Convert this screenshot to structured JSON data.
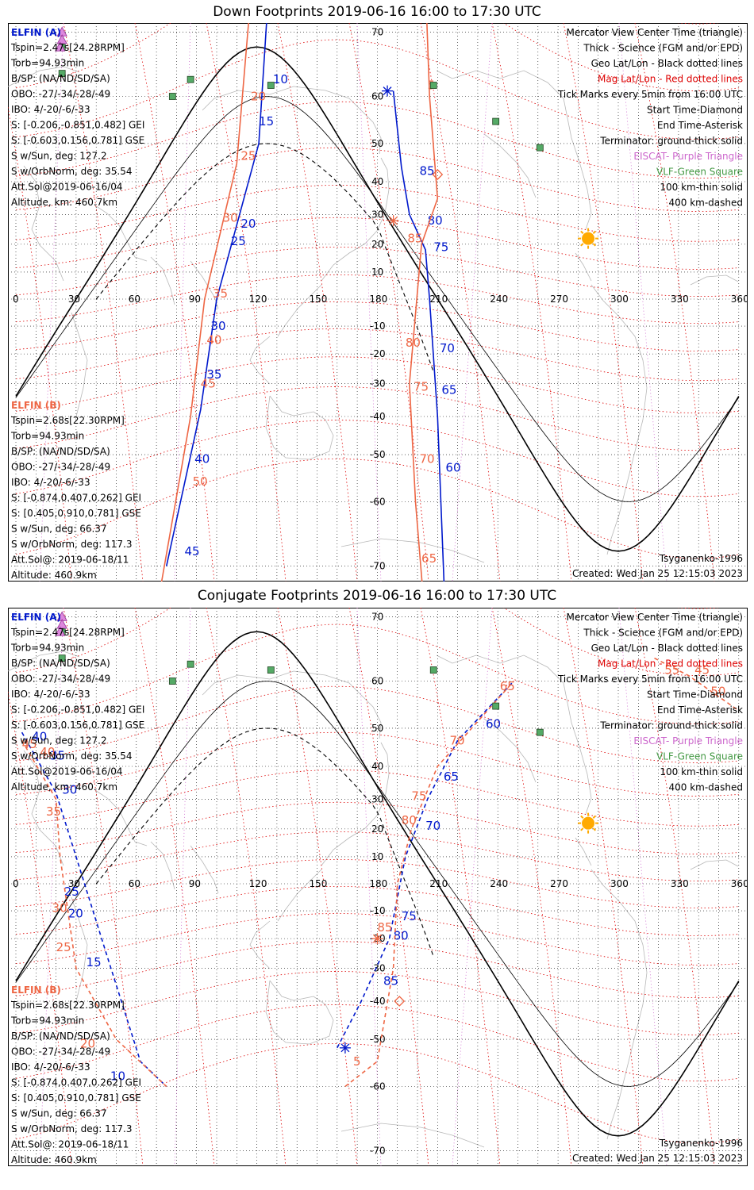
{
  "colors": {
    "elfin_a": "#0018cc",
    "elfin_b": "#ee6644",
    "mag_grid": "#dd0000",
    "geo_grid": "#000000",
    "eiscat": "#cc66cc",
    "vlf": "#449944",
    "vlf_fill": "#55aa66",
    "sun": "#ffaa00",
    "coast": "#b8b8b8"
  },
  "panels": [
    {
      "id": "down",
      "title": "Down Footprints 2019-06-16 16:00 to 17:30 UTC",
      "elfin_a": {
        "label": "ELFIN (A)",
        "lines": [
          "Tspin=2.47s[24.28RPM]",
          "Torb=94.93min",
          "B/SP: (NA/ND/SD/SA)",
          "OBO: -27/-34/-28/-49",
          "IBO: 4/-20/-6/-33",
          "S: [-0.206,-0.851,0.482] GEI",
          "S: [-0.603,0.156,0.781] GSE",
          "S w/Sun, deg: 127.2",
          "S w/OrbNorm, deg: 35.54",
          "Att.Sol@2019-06-16/04",
          "Altitude, km: 460.7km"
        ]
      },
      "elfin_b": {
        "label": "ELFIN (B)",
        "lines": [
          "Tspin=2.68s[22.30RPM]",
          "Torb=94.93min",
          "B/SP: (NA/ND/SD/SA)",
          "OBO: -27/-34/-28/-49",
          "IBO: 4/-20/-6/-33",
          "S: [-0.874,0.407,0.262] GEI",
          "S: [0.405,0.910,0.781] GSE",
          "S w/Sun, deg: 66.37",
          "S w/OrbNorm, deg: 117.3",
          "Att.Sol@: 2019-06-18/11",
          "Altitude: 460.9km"
        ]
      },
      "legend": [
        "Mercator View Center Time (triangle)",
        "Thick - Science (FGM and/or EPD)",
        "Geo Lat/Lon - Black dotted lines",
        "Mag Lat/Lon - Red dotted lines",
        "Tick Marks every 5min from 16:00 UTC",
        "Start Time-Diamond",
        "End Time-Asterisk",
        "Terminator: ground-thick solid",
        "EISCAT- Purple Triangle",
        "VLF-Green Square",
        "100 km-thin solid",
        "400 km-dashed"
      ],
      "model": "Tsyganenko-1996",
      "created": "Created: Wed Jan 25 12:15:03 2023",
      "track_a": {
        "points": [
          [
            128,
            80
          ],
          [
            121,
            50
          ],
          [
            100,
            0
          ],
          [
            92,
            -38
          ],
          [
            75,
            -70
          ]
        ],
        "ticks": [
          [
            "10",
            128,
            63
          ],
          [
            "15",
            121,
            55
          ],
          [
            "20",
            112,
            27
          ],
          [
            "25",
            107,
            21
          ],
          [
            "30",
            97,
            -10
          ],
          [
            "35",
            95,
            -27
          ],
          [
            "40",
            89,
            -51
          ],
          [
            "45",
            84,
            -68
          ]
        ]
      },
      "track_b": {
        "points": [
          [
            120,
            80
          ],
          [
            110,
            45
          ],
          [
            94,
            0
          ],
          [
            87,
            -40
          ],
          [
            70,
            -75
          ]
        ],
        "ticks": [
          [
            "20",
            117,
            60
          ],
          [
            "25",
            112,
            47
          ],
          [
            "30",
            103,
            29
          ],
          [
            "35",
            98,
            2
          ],
          [
            "40",
            95,
            -15
          ],
          [
            "45",
            92,
            -30
          ],
          [
            "50",
            88,
            -56
          ],
          [
            "55",
            83,
            -76
          ]
        ]
      },
      "track_a2": {
        "points": [
          [
            188,
            61
          ],
          [
            192,
            44
          ],
          [
            196,
            30
          ],
          [
            204,
            18
          ],
          [
            206,
            0
          ],
          [
            210,
            -40
          ],
          [
            215,
            -80
          ]
        ],
        "ticks": [
          [
            "85",
            201,
            43
          ],
          [
            "80",
            205,
            28
          ],
          [
            "75",
            208,
            19
          ],
          [
            "70",
            211,
            -18
          ],
          [
            "65",
            212,
            -32
          ],
          [
            "60",
            214,
            -53
          ],
          [
            "55",
            216,
            -74
          ]
        ],
        "start": [
          190,
          79
        ],
        "end": [
          185,
          61
        ]
      },
      "track_b2": {
        "points": [
          [
            201,
            85
          ],
          [
            206,
            60
          ],
          [
            210,
            35
          ],
          [
            202,
            20
          ],
          [
            196,
            -30
          ],
          [
            199,
            -60
          ],
          [
            206,
            -80
          ]
        ],
        "ticks": [
          [
            "5",
            205,
            62
          ],
          [
            "85",
            195,
            22
          ],
          [
            "80",
            194,
            -16
          ],
          [
            "75",
            198,
            -31
          ],
          [
            "70",
            201,
            -51
          ],
          [
            "65",
            202,
            -69
          ]
        ],
        "start": [
          210,
          42
        ],
        "end": [
          188,
          28
        ]
      },
      "vlf": [
        [
          78,
          60
        ],
        [
          87,
          63
        ],
        [
          127,
          62
        ],
        [
          208,
          62
        ],
        [
          239,
          55
        ],
        [
          261,
          49
        ],
        [
          23,
          68
        ],
        [
          23,
          64
        ]
      ],
      "eiscat": [
        [
          23,
          70
        ],
        [
          23,
          69
        ],
        [
          22,
          68
        ]
      ],
      "sun": [
        285,
        22
      ]
    },
    {
      "id": "conjugate",
      "title": "Conjugate Footprints 2019-06-16 16:00 to 17:30 UTC",
      "elfin_a": {
        "label": "ELFIN (A)",
        "lines": [
          "Tspin=2.47s[24.28RPM]",
          "Torb=94.93min",
          "B/SP: (NA/ND/SD/SA)",
          "OBO: -27/-34/-28/-49",
          "IBO: 4/-20/-6/-33",
          "S: [-0.206,-0.851,0.482] GEI",
          "S: [-0.603,0.156,0.781] GSE",
          "S w/Sun, deg: 127.2",
          "S w/OrbNorm, deg: 35.54",
          "Att.Sol@2019-06-16/04",
          "Altitude, km: 460.7km"
        ]
      },
      "elfin_b": {
        "label": "ELFIN (B)",
        "lines": [
          "Tspin=2.68s[22.30RPM]",
          "Torb=94.93min",
          "B/SP: (NA/ND/SD/SA)",
          "OBO: -27/-34/-28/-49",
          "IBO: 4/-20/-6/-33",
          "S: [-0.874,0.407,0.262] GEI",
          "S: [0.405,0.910,0.781] GSE",
          "S w/Sun, deg: 66.37",
          "S w/OrbNorm, deg: 117.3",
          "Att.Sol@: 2019-06-18/11",
          "Altitude: 460.9km"
        ]
      },
      "legend": [
        "Mercator View Center Time (triangle)",
        "Thick - Science (FGM and/or EPD)",
        "Geo Lat/Lon - Black dotted lines",
        "Mag Lat/Lon - Red dotted lines",
        "Tick Marks every 5min from 16:00 UTC",
        "Start Time-Diamond",
        "End Time-Asterisk",
        "Terminator: ground-thick solid",
        "EISCAT- Purple Triangle",
        "VLF-Green Square",
        "100 km-thin solid",
        "400 km-dashed"
      ],
      "model": "Tsyganenko-1996",
      "created": "Created: Wed Jan 25 12:15:03 2023",
      "track_a": {
        "points": [
          [
            3,
            49
          ],
          [
            20,
            32
          ],
          [
            30,
            10
          ],
          [
            45,
            -25
          ],
          [
            62,
            -55
          ],
          [
            75,
            -60
          ]
        ],
        "ticks": [
          [
            "40",
            8,
            48
          ],
          [
            "35",
            17,
            43
          ],
          [
            "30",
            23,
            33
          ],
          [
            "25",
            24,
            -3
          ],
          [
            "20",
            26,
            -11
          ],
          [
            "15",
            35,
            -28
          ],
          [
            "10",
            47,
            -58
          ]
        ]
      },
      "track_b": {
        "points": [
          [
            3,
            47
          ],
          [
            20,
            30
          ],
          [
            22,
            10
          ],
          [
            30,
            -30
          ],
          [
            50,
            -50
          ],
          [
            75,
            -60
          ]
        ],
        "ticks": [
          [
            "45",
            3,
            46
          ],
          [
            "40",
            12,
            44
          ],
          [
            "35",
            15,
            26
          ],
          [
            "30",
            18,
            -9
          ],
          [
            "25",
            20,
            -23
          ],
          [
            "20",
            32,
            -51
          ]
        ]
      },
      "track_a2": {
        "points": [
          [
            160,
            -52
          ],
          [
            172,
            -40
          ],
          [
            186,
            -20
          ],
          [
            194,
            10
          ],
          [
            205,
            30
          ],
          [
            220,
            47
          ],
          [
            248,
            60
          ]
        ],
        "ticks": [
          [
            "85",
            183,
            -34
          ],
          [
            "80",
            188,
            -19
          ],
          [
            "75",
            192,
            -12
          ],
          [
            "70",
            204,
            21
          ],
          [
            "65",
            213,
            37
          ],
          [
            "60",
            234,
            51
          ]
        ],
        "start": null,
        "end": [
          164,
          -52
        ]
      },
      "track_b2": {
        "points": [
          [
            164,
            -60
          ],
          [
            180,
            -55
          ],
          [
            188,
            -30
          ],
          [
            190,
            0
          ],
          [
            197,
            20
          ],
          [
            210,
            40
          ],
          [
            248,
            60
          ]
        ],
        "ticks": [
          [
            "5",
            168,
            -55
          ],
          [
            "85",
            180,
            -16
          ],
          [
            "80",
            192,
            23
          ],
          [
            "75",
            197,
            31
          ],
          [
            "70",
            216,
            47
          ],
          [
            "65",
            241,
            59
          ]
        ],
        "start": [
          191,
          -40
        ],
        "end": [
          180,
          -20
        ]
      },
      "track_c": {
        "points": [
          [
            318,
            64
          ],
          [
            335,
            61
          ],
          [
            350,
            57
          ],
          [
            360,
            54
          ]
        ],
        "ticks": [
          [
            "55",
            323,
            62
          ],
          [
            "45",
            338,
            62
          ],
          [
            "50",
            346,
            58
          ]
        ]
      },
      "vlf": [
        [
          78,
          60
        ],
        [
          87,
          63
        ],
        [
          127,
          62
        ],
        [
          208,
          62
        ],
        [
          239,
          55
        ],
        [
          261,
          49
        ],
        [
          23,
          68
        ],
        [
          23,
          64
        ]
      ],
      "eiscat": [
        [
          23,
          70
        ],
        [
          23,
          69
        ],
        [
          22,
          68
        ]
      ],
      "sun": [
        285,
        22
      ]
    }
  ]
}
